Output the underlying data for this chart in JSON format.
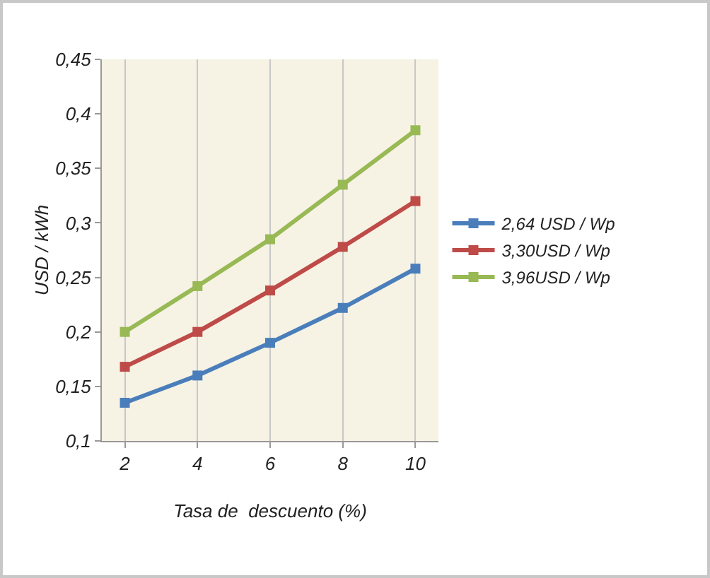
{
  "chart_data": {
    "type": "line",
    "xlabel": "Tasa de  descuento (%)",
    "ylabel": "USD / kWh",
    "categories": [
      "2",
      "4",
      "6",
      "8",
      "10"
    ],
    "series": [
      {
        "name": "2,64 USD / Wp",
        "color": "#4a7ebb",
        "values": [
          0.135,
          0.16,
          0.19,
          0.222,
          0.258
        ]
      },
      {
        "name": "3,30USD / Wp",
        "color": "#be4b48",
        "values": [
          0.168,
          0.2,
          0.238,
          0.278,
          0.32
        ]
      },
      {
        "name": "3,96USD / Wp",
        "color": "#98b954",
        "values": [
          0.2,
          0.242,
          0.285,
          0.335,
          0.385
        ]
      }
    ],
    "ylim": [
      0.1,
      0.45
    ],
    "yticks": [
      {
        "value": 0.1,
        "label": "0,1"
      },
      {
        "value": 0.15,
        "label": "0,15"
      },
      {
        "value": 0.2,
        "label": "0,2"
      },
      {
        "value": 0.25,
        "label": "0,25"
      },
      {
        "value": 0.3,
        "label": "0,3"
      },
      {
        "value": 0.35,
        "label": "0,35"
      },
      {
        "value": 0.4,
        "label": "0,4"
      },
      {
        "value": 0.45,
        "label": "0,45"
      }
    ],
    "grid": "x",
    "legend": "right",
    "marker": "square",
    "line_style": "solid"
  }
}
